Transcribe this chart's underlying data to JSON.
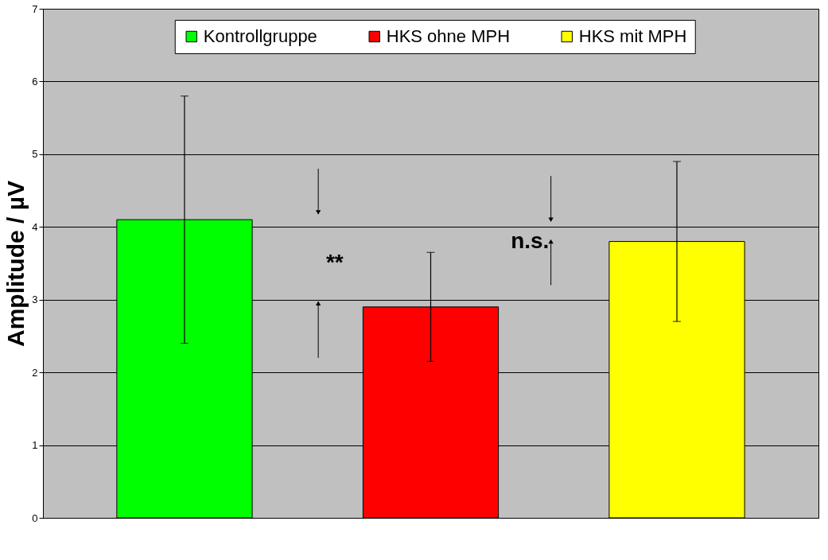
{
  "chart_data": {
    "type": "bar",
    "ylabel": "Amplitude / µV",
    "categories": [
      null,
      null,
      null
    ],
    "series": [
      {
        "name": "Kontrollgruppe",
        "color": "#00ff00",
        "values": [
          4.1,
          null,
          null
        ],
        "errors": [
          1.7,
          null,
          null
        ]
      },
      {
        "name": "HKS ohne MPH",
        "color": "#ff0000",
        "values": [
          null,
          2.9,
          null
        ],
        "errors": [
          null,
          0.75,
          null
        ]
      },
      {
        "name": "HKS mit MPH",
        "color": "#ffff00",
        "values": [
          null,
          null,
          3.8
        ],
        "errors": [
          null,
          null,
          1.1
        ]
      }
    ],
    "ylim": [
      0,
      7
    ],
    "yticks": [
      0,
      1,
      2,
      3,
      4,
      5,
      6,
      7
    ],
    "grid": "y",
    "legend": "top",
    "annotations": [
      "**",
      "n.s."
    ]
  }
}
